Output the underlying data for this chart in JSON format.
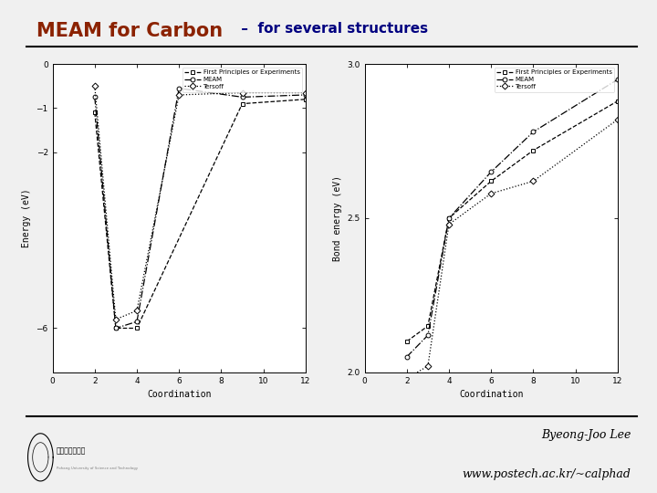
{
  "title_main": "MEAM for Carbon",
  "title_sub": " –  for several structures",
  "title_main_color": "#8B2200",
  "title_sub_color": "#000080",
  "bg_color": "#F0F0F0",
  "footer_text1": "Byeong-Joo Lee",
  "footer_text2": "www.postech.ac.kr/~calphad",
  "left_series": {
    "fp": {
      "x": [
        2,
        3,
        4,
        9,
        12
      ],
      "y": [
        -1.1,
        -6.0,
        -6.0,
        -0.9,
        -0.8
      ]
    },
    "meam": {
      "x": [
        2,
        3,
        4,
        6,
        9,
        12
      ],
      "y": [
        -0.75,
        -6.0,
        -5.85,
        -0.55,
        -0.75,
        -0.7
      ]
    },
    "tersoff": {
      "x": [
        2,
        3,
        4,
        6,
        9,
        12
      ],
      "y": [
        -0.5,
        -5.8,
        -5.6,
        -0.7,
        -0.65,
        -0.65
      ]
    }
  },
  "left_xlim": [
    0,
    12
  ],
  "left_ylim": [
    -7,
    0
  ],
  "left_yticks": [
    0,
    -1,
    -2,
    -6
  ],
  "left_xticks": [
    0,
    2,
    4,
    6,
    8,
    10,
    12
  ],
  "left_xlabel": "Coordination",
  "left_ylabel": "Energy (eV)",
  "right_series": {
    "fp": {
      "x": [
        2,
        3,
        4,
        6,
        8,
        12
      ],
      "y": [
        2.1,
        2.15,
        2.5,
        2.62,
        2.72,
        2.88
      ]
    },
    "meam": {
      "x": [
        2,
        3,
        4,
        6,
        8,
        12
      ],
      "y": [
        2.05,
        2.12,
        2.5,
        2.65,
        2.78,
        2.95
      ]
    },
    "tersoff": {
      "x": [
        2,
        3,
        4,
        6,
        8,
        12
      ],
      "y": [
        1.98,
        2.02,
        2.48,
        2.58,
        2.62,
        2.82
      ]
    }
  },
  "right_xlim": [
    0,
    12
  ],
  "right_ylim": [
    2.0,
    3.0
  ],
  "right_yticks": [
    2.0,
    2.5,
    3.0
  ],
  "right_xticks": [
    0,
    2,
    4,
    6,
    8,
    10,
    12
  ],
  "right_xlabel": "Coordination",
  "right_ylabel": "Bond energy (eV)",
  "legend_labels": [
    "First Principles or Experiments",
    "MEAM",
    "Tersoff"
  ],
  "markers": [
    "s",
    "o",
    "D"
  ],
  "linestyles": [
    "--",
    "-.",
    ":"
  ]
}
